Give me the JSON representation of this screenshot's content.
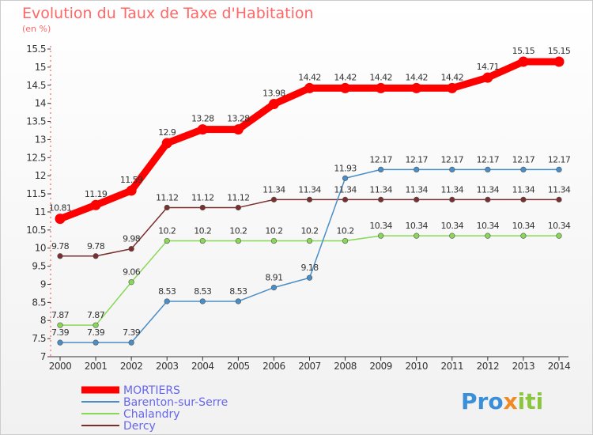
{
  "title": "Evolution du Taux de Taxe d'Habitation",
  "unit": "(en %)",
  "logo": {
    "parts": [
      "Pro",
      "x",
      "iti"
    ],
    "colors": [
      "#3a8fd8",
      "#f08a24",
      "#8cc63f"
    ]
  },
  "chart_data": {
    "type": "line",
    "title": "Evolution du Taux de Taxe d'Habitation",
    "ylabel": "(en %)",
    "xlabel": "",
    "ylim": [
      7,
      15.5
    ],
    "yticks": [
      "7",
      "7.5",
      "8",
      "8.5",
      "9",
      "9.5",
      "10",
      "10.5",
      "11",
      "11.5",
      "12",
      "12.5",
      "13",
      "13.5",
      "14",
      "14.5",
      "15",
      "15.5"
    ],
    "x": [
      "2000",
      "2001",
      "2002",
      "2003",
      "2004",
      "2005",
      "2006",
      "2007",
      "2008",
      "2009",
      "2010",
      "2011",
      "2012",
      "2013",
      "2014"
    ],
    "grid": false,
    "legend_position": "bottom-left",
    "series": [
      {
        "name": "MORTIERS",
        "color": "#ff0000",
        "values": [
          10.81,
          11.19,
          11.59,
          12.9,
          13.28,
          13.28,
          13.98,
          14.42,
          14.42,
          14.42,
          14.42,
          14.42,
          14.71,
          15.15,
          15.15
        ],
        "labels": [
          "10.81",
          "11.19",
          "11.59",
          "12.9",
          "13.28",
          "13.28",
          "13.98",
          "14.42",
          "14.42",
          "14.42",
          "14.42",
          "14.42",
          "14.71",
          "15.15",
          "15.15"
        ]
      },
      {
        "name": "Barenton-sur-Serre",
        "color": "#4a8ec8",
        "values": [
          7.39,
          7.39,
          7.39,
          8.53,
          8.53,
          8.53,
          8.91,
          9.18,
          11.93,
          12.17,
          12.17,
          12.17,
          12.17,
          12.17,
          12.17
        ],
        "labels": [
          "7.39",
          "7.39",
          "7.39",
          "8.53",
          "8.53",
          "8.53",
          "8.91",
          "9.18",
          "11.93",
          "12.17",
          "12.17",
          "12.17",
          "12.17",
          "12.17",
          "12.17"
        ]
      },
      {
        "name": "Chalandry",
        "color": "#88d855",
        "values": [
          7.87,
          7.87,
          9.06,
          10.2,
          10.2,
          10.2,
          10.2,
          10.2,
          10.2,
          10.34,
          10.34,
          10.34,
          10.34,
          10.34,
          10.34
        ],
        "labels": [
          "7.87",
          "7.87",
          "9.06",
          "10.2",
          "10.2",
          "10.2",
          "10.2",
          "10.2",
          "10.2",
          "10.34",
          "10.34",
          "10.34",
          "10.34",
          "10.34",
          "10.34"
        ]
      },
      {
        "name": "Dercy",
        "color": "#7a2f2f",
        "values": [
          9.78,
          9.78,
          9.98,
          11.12,
          11.12,
          11.12,
          11.34,
          11.34,
          11.34,
          11.34,
          11.34,
          11.34,
          11.34,
          11.34,
          11.34
        ],
        "labels": [
          "9.78",
          "9.78",
          "9.98",
          "11.12",
          "11.12",
          "11.12",
          "11.34",
          "11.34",
          "11.34",
          "11.34",
          "11.34",
          "11.34",
          "11.34",
          "11.34",
          "11.34"
        ]
      }
    ]
  }
}
